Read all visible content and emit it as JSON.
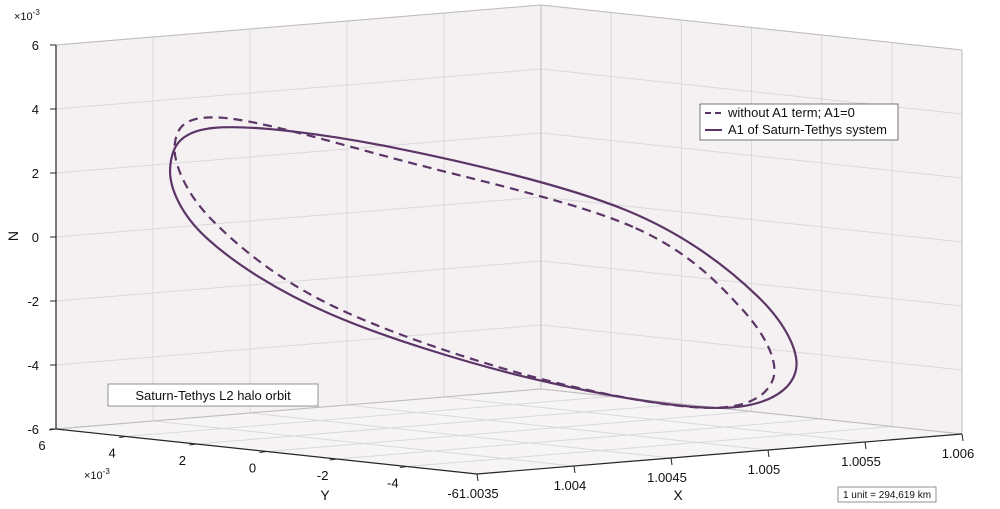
{
  "chart_data": {
    "type": "line",
    "view": "3d",
    "axes": {
      "x": {
        "label": "X",
        "lim": [
          1.0035,
          1.006
        ],
        "ticks": [
          "1.0035",
          "1.004",
          "1.0045",
          "1.005",
          "1.0055",
          "1.006"
        ]
      },
      "y": {
        "label": "Y",
        "lim": [
          -6,
          6
        ],
        "ticks": [
          "-6",
          "-4",
          "-2",
          "0",
          "2",
          "4",
          "6"
        ],
        "exponent": "×10-3"
      },
      "z": {
        "label": "N",
        "lim": [
          -6,
          6
        ],
        "ticks": [
          "-6",
          "-4",
          "-2",
          "0",
          "2",
          "4",
          "6"
        ],
        "exponent": "×10-3"
      }
    },
    "grid": true,
    "legend": {
      "position": "upper-right",
      "entries": [
        {
          "label": "without A1 term; A1=0",
          "style": "dashed",
          "color": "#5b3566"
        },
        {
          "label": "A1 of Saturn-Tethys system",
          "style": "solid",
          "color": "#5b3566"
        }
      ]
    },
    "annotation": "Saturn-Tethys L2 halo orbit",
    "unit_note": "1 unit = 294,619 km",
    "series": [
      {
        "name": "without A1 term; A1=0",
        "style": "dashed",
        "color": "#5b3566",
        "x": [
          1.00528,
          1.00458,
          1.00392,
          1.00366,
          1.00368,
          1.00396,
          1.00452,
          1.0051,
          1.00546,
          1.00552,
          1.00528
        ],
        "y": [
          -0.6,
          2.1,
          3.6,
          3.5,
          2.6,
          0.8,
          -1.7,
          -3.7,
          -3.6,
          -2.4,
          -0.6
        ],
        "z": [
          0.2,
          2.3,
          3.8,
          3.1,
          0.9,
          -1.7,
          -3.9,
          -5.0,
          -4.3,
          -2.3,
          0.2
        ]
      },
      {
        "name": "A1 of Saturn-Tethys system",
        "style": "solid",
        "color": "#5b3566",
        "x": [
          1.00528,
          1.00456,
          1.00388,
          1.0036,
          1.00363,
          1.00394,
          1.00452,
          1.00514,
          1.00552,
          1.00558,
          1.00528
        ],
        "y": [
          -0.4,
          2.2,
          3.6,
          3.3,
          2.4,
          0.6,
          -1.9,
          -3.9,
          -3.9,
          -2.5,
          -0.4
        ],
        "z": [
          0.7,
          2.7,
          3.5,
          2.4,
          0.3,
          -2.0,
          -4.0,
          -5.0,
          -4.1,
          -1.9,
          0.7
        ]
      }
    ]
  }
}
